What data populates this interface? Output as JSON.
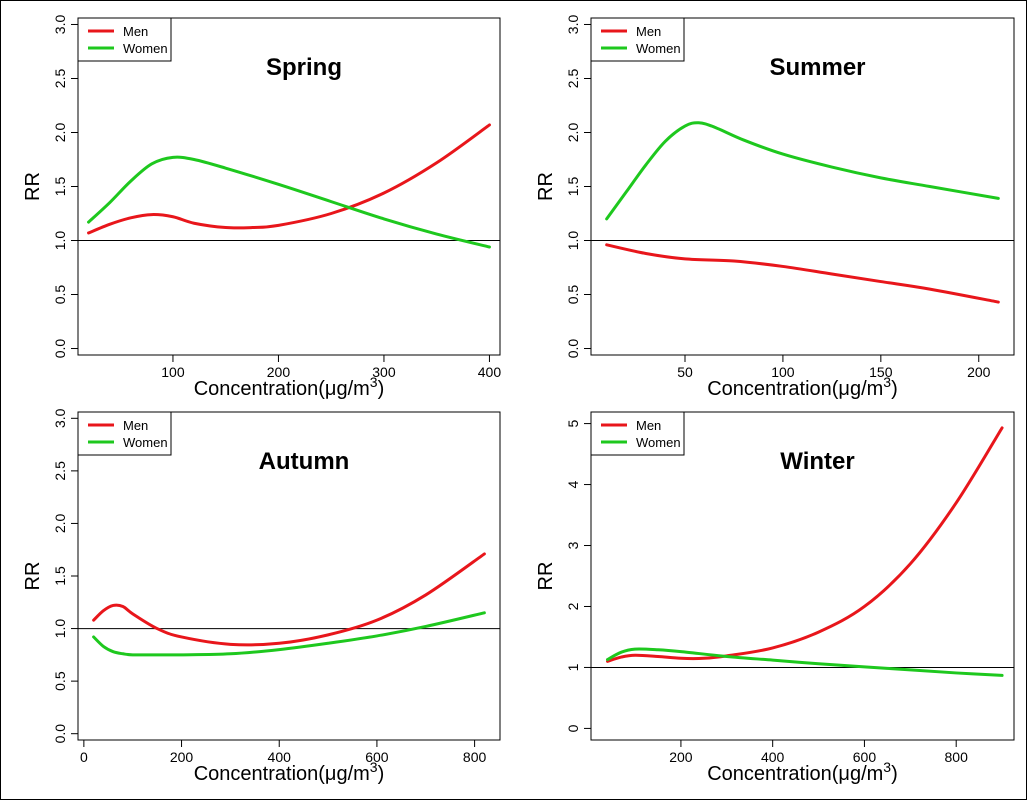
{
  "chart_data": [
    {
      "type": "line",
      "title": "Spring",
      "xlabel": "Concentration(μg/m3)",
      "ylabel": "RR",
      "xlim": [
        10,
        410
      ],
      "ylim": [
        -0.06,
        3.06
      ],
      "xticks": [
        100,
        200,
        300,
        400
      ],
      "yticks": [
        0.0,
        0.5,
        1.0,
        1.5,
        2.0,
        2.5,
        3.0
      ],
      "ytick_labels": [
        "0.0",
        "0.5",
        "1.0",
        "1.5",
        "2.0",
        "2.5",
        "3.0"
      ],
      "reference_line": 1.0,
      "legend": {
        "position": "top-left",
        "entries": [
          "Men",
          "Women"
        ]
      },
      "series": [
        {
          "name": "Men",
          "color": "#e8161b",
          "x": [
            20,
            40,
            60,
            80,
            100,
            120,
            150,
            175,
            200,
            250,
            300,
            350,
            400
          ],
          "y": [
            1.07,
            1.15,
            1.21,
            1.24,
            1.22,
            1.16,
            1.12,
            1.12,
            1.14,
            1.25,
            1.44,
            1.72,
            2.07
          ]
        },
        {
          "name": "Women",
          "color": "#1ec81e",
          "x": [
            20,
            40,
            60,
            80,
            100,
            120,
            150,
            200,
            250,
            300,
            350,
            400
          ],
          "y": [
            1.17,
            1.35,
            1.55,
            1.71,
            1.77,
            1.75,
            1.67,
            1.52,
            1.36,
            1.2,
            1.06,
            0.94
          ]
        }
      ]
    },
    {
      "type": "line",
      "title": "Summer",
      "xlabel": "Concentration(μg/m3)",
      "ylabel": "RR",
      "xlim": [
        2,
        218
      ],
      "ylim": [
        -0.06,
        3.06
      ],
      "xticks": [
        50,
        100,
        150,
        200
      ],
      "yticks": [
        0.0,
        0.5,
        1.0,
        1.5,
        2.0,
        2.5,
        3.0
      ],
      "ytick_labels": [
        "0.0",
        "0.5",
        "1.0",
        "1.5",
        "2.0",
        "2.5",
        "3.0"
      ],
      "reference_line": 1.0,
      "legend": {
        "position": "top-left",
        "entries": [
          "Men",
          "Women"
        ]
      },
      "series": [
        {
          "name": "Men",
          "color": "#e8161b",
          "x": [
            10,
            30,
            50,
            75,
            100,
            125,
            150,
            175,
            210
          ],
          "y": [
            0.96,
            0.88,
            0.83,
            0.81,
            0.76,
            0.69,
            0.62,
            0.55,
            0.43
          ]
        },
        {
          "name": "Women",
          "color": "#1ec81e",
          "x": [
            10,
            20,
            30,
            40,
            50,
            57,
            65,
            80,
            100,
            125,
            150,
            175,
            210
          ],
          "y": [
            1.2,
            1.45,
            1.7,
            1.92,
            2.06,
            2.09,
            2.05,
            1.93,
            1.8,
            1.68,
            1.58,
            1.5,
            1.39
          ]
        }
      ]
    },
    {
      "type": "line",
      "title": "Autumn",
      "xlabel": "Concentration(μg/m3)",
      "ylabel": "RR",
      "xlim": [
        -12,
        852
      ],
      "ylim": [
        -0.06,
        3.06
      ],
      "xticks": [
        0,
        200,
        400,
        600,
        800
      ],
      "yticks": [
        0.0,
        0.5,
        1.0,
        1.5,
        2.0,
        2.5,
        3.0
      ],
      "ytick_labels": [
        "0.0",
        "0.5",
        "1.0",
        "1.5",
        "2.0",
        "2.5",
        "3.0"
      ],
      "reference_line": 1.0,
      "legend": {
        "position": "top-left",
        "entries": [
          "Men",
          "Women"
        ]
      },
      "series": [
        {
          "name": "Men",
          "color": "#e8161b",
          "x": [
            20,
            40,
            60,
            80,
            100,
            150,
            200,
            300,
            400,
            500,
            600,
            700,
            820
          ],
          "y": [
            1.08,
            1.17,
            1.22,
            1.21,
            1.14,
            1.0,
            0.92,
            0.85,
            0.86,
            0.94,
            1.08,
            1.32,
            1.71
          ]
        },
        {
          "name": "Women",
          "color": "#1ec81e",
          "x": [
            20,
            40,
            60,
            80,
            100,
            150,
            200,
            300,
            400,
            500,
            600,
            700,
            820
          ],
          "y": [
            0.92,
            0.83,
            0.78,
            0.76,
            0.75,
            0.75,
            0.75,
            0.76,
            0.8,
            0.86,
            0.93,
            1.02,
            1.15
          ]
        }
      ]
    },
    {
      "type": "line",
      "title": "Winter",
      "xlabel": "Concentration(μg/m3)",
      "ylabel": "RR",
      "xlim": [
        4,
        926
      ],
      "ylim": [
        -0.19,
        5.19
      ],
      "xticks": [
        200,
        400,
        600,
        800
      ],
      "yticks": [
        0,
        1,
        2,
        3,
        4,
        5
      ],
      "ytick_labels": [
        "0",
        "1",
        "2",
        "3",
        "4",
        "5"
      ],
      "reference_line": 1.0,
      "legend": {
        "position": "top-left",
        "entries": [
          "Men",
          "Women"
        ]
      },
      "series": [
        {
          "name": "Men",
          "color": "#e8161b",
          "x": [
            40,
            70,
            100,
            150,
            200,
            250,
            300,
            400,
            500,
            600,
            700,
            800,
            900
          ],
          "y": [
            1.1,
            1.17,
            1.2,
            1.18,
            1.15,
            1.15,
            1.19,
            1.32,
            1.58,
            2.0,
            2.7,
            3.7,
            4.93
          ]
        },
        {
          "name": "Women",
          "color": "#1ec81e",
          "x": [
            40,
            70,
            100,
            150,
            200,
            300,
            400,
            500,
            600,
            700,
            800,
            900
          ],
          "y": [
            1.13,
            1.25,
            1.3,
            1.29,
            1.26,
            1.18,
            1.12,
            1.06,
            1.01,
            0.96,
            0.91,
            0.87
          ]
        }
      ]
    }
  ]
}
